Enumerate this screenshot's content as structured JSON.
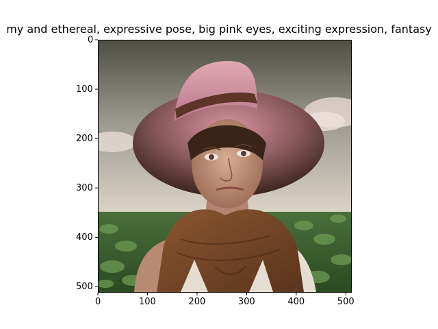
{
  "title": "my and ethereal, expressive pose, big pink eyes, exciting expression, fantasy",
  "image": {
    "subject": "woman-in-pink-straw-hat-and-brown-scarf",
    "colors": {
      "sky_top": "#5a5a52",
      "sky_bottom": "#d8d2c4",
      "field_dark": "#1f3a1a",
      "field_light": "#5c8a45",
      "hat_pink": "#c98a9a",
      "hat_dark": "#4a2e22",
      "hat_band": "#6b3a2e",
      "skin": "#c89a82",
      "scarf": "#7a4a2a",
      "shirt": "#e8e0d6"
    }
  },
  "axes": {
    "x_ticks": [
      "0",
      "100",
      "200",
      "300",
      "400",
      "500"
    ],
    "y_ticks": [
      "0",
      "100",
      "200",
      "300",
      "400",
      "500"
    ],
    "xlim": [
      0,
      512
    ],
    "ylim": [
      512,
      0
    ]
  }
}
